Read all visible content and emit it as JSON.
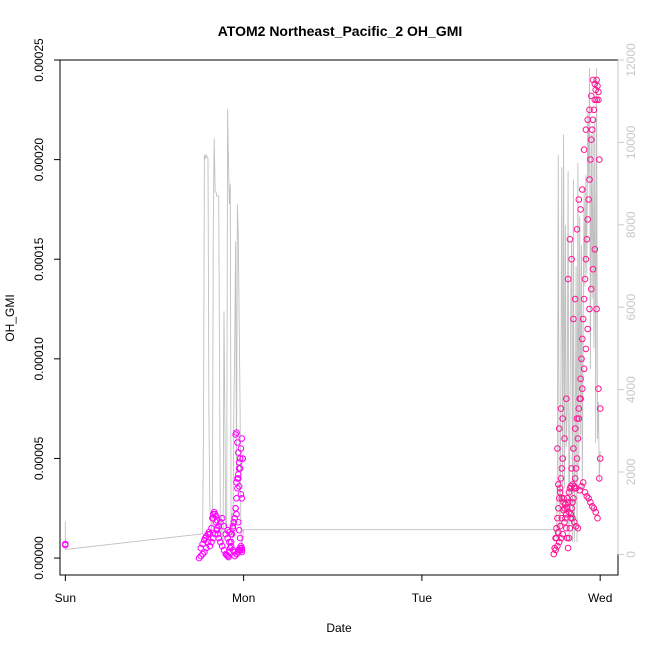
{
  "chart_data": {
    "type": "scatter",
    "title": "ATOM2 Northeast_Pacific_2 OH_GMI",
    "xlabel": "Date",
    "ylabel": "OH_GMI",
    "x_ticks": [
      "Sun",
      "Mon",
      "Tue",
      "Wed"
    ],
    "x_range": [
      -0.03,
      3.1
    ],
    "ylim": [
      -8.5e-06,
      0.00025
    ],
    "y_ticks": [
      "0.00000",
      "0.00005",
      "0.00010",
      "0.00015",
      "0.00020",
      "0.00025"
    ],
    "y2lim": [
      -500,
      12000
    ],
    "y2_ticks": [
      "0",
      "2000",
      "4000",
      "6000",
      "8000",
      "10000",
      "12000"
    ],
    "grid": false,
    "colors": {
      "altitude_line": "#c0c0c0",
      "points_low": "#ff00ff",
      "points_high": "#ff1493",
      "axis": "#000000",
      "axis_right": "#c8c8c8"
    },
    "altitude_series": {
      "x": [
        0.0,
        0.0,
        0.001,
        0.77,
        0.775,
        0.78,
        0.785,
        0.79,
        0.8,
        0.805,
        0.81,
        0.82,
        0.825,
        0.83,
        0.835,
        0.84,
        0.845,
        0.85,
        0.86,
        0.87,
        0.875,
        0.88,
        0.885,
        0.89,
        0.9,
        0.905,
        0.91,
        0.915,
        0.92,
        0.925,
        0.93,
        0.935,
        0.94,
        0.945,
        0.95,
        0.955,
        0.96,
        0.965,
        0.97,
        0.98,
        0.985,
        0.99,
        1.0,
        2.74,
        2.75,
        2.755,
        2.76,
        2.765,
        2.77,
        2.775,
        2.78,
        2.785,
        2.79,
        2.795,
        2.8,
        2.805,
        2.81,
        2.815,
        2.82,
        2.825,
        2.83,
        2.835,
        2.84,
        2.845,
        2.85,
        2.855,
        2.86,
        2.865,
        2.87,
        2.875,
        2.88,
        2.885,
        2.89,
        2.895,
        2.9,
        2.905,
        2.91,
        2.915,
        2.92,
        2.925,
        2.93,
        2.935,
        2.94,
        2.945,
        2.95,
        2.955,
        2.96,
        2.965,
        2.97,
        2.975,
        2.98,
        2.985,
        2.99,
        2.995,
        3.0
      ],
      "y": [
        800,
        550,
        120,
        500,
        3000,
        9700,
        9600,
        9700,
        9600,
        3500,
        1200,
        500,
        900,
        8000,
        10100,
        8800,
        8800,
        8700,
        8700,
        500,
        900,
        200,
        300,
        5900,
        500,
        800,
        10800,
        9500,
        8500,
        9000,
        500,
        1000,
        300,
        3500,
        5000,
        7600,
        2000,
        8500,
        7700,
        3500,
        500,
        200,
        600,
        600,
        500,
        400,
        2000,
        9700,
        300,
        700,
        4800,
        9400,
        1000,
        10200,
        1600,
        8000,
        2600,
        3500,
        9300,
        300,
        2900,
        6300,
        7600,
        300,
        9100,
        300,
        2500,
        7000,
        300,
        9500,
        2100,
        8200,
        2900,
        7500,
        1500,
        5500,
        8900,
        6500,
        9200,
        6800,
        10700,
        9100,
        11800,
        4500,
        10200,
        6200,
        10400,
        5000,
        10600,
        2700,
        11800,
        2800,
        3700,
        1800,
        2500
      ]
    },
    "oh_series": {
      "low_x": [
        0.0,
        0.0,
        0.75,
        0.76,
        0.77,
        0.78,
        0.79,
        0.8,
        0.81,
        0.82,
        0.83,
        0.84,
        0.845,
        0.85,
        0.855,
        0.86,
        0.87,
        0.88,
        0.89,
        0.9,
        0.905,
        0.91,
        0.915,
        0.92,
        0.925,
        0.93,
        0.935,
        0.94,
        0.945,
        0.95,
        0.955,
        0.96,
        0.965,
        0.97,
        0.975,
        0.98,
        0.985,
        0.99,
        0.995,
        0.955,
        0.96,
        0.965,
        0.97,
        0.975,
        0.98,
        0.955,
        0.96,
        0.97,
        0.975,
        0.98,
        0.985,
        0.99,
        0.81,
        0.82,
        0.83,
        0.84,
        0.85,
        0.86,
        0.87,
        0.88,
        0.89,
        0.9,
        0.91,
        0.92,
        0.93,
        0.94,
        0.95,
        0.96,
        0.97,
        0.98,
        0.99,
        0.825,
        0.83,
        0.835,
        0.845,
        0.85,
        0.76,
        0.77,
        0.78,
        0.785,
        0.79,
        0.8,
        0.805,
        0.96,
        0.965,
        0.97,
        0.975,
        0.985,
        0.99,
        0.995,
        0.95,
        0.96,
        0.97,
        0.98,
        0.99,
        0.91,
        0.92,
        0.93,
        0.94
      ],
      "low_y": [
        7e-06,
        6.5e-06,
        0.0,
        1e-06,
        2e-06,
        3e-06,
        5e-06,
        8e-06,
        1.2e-05,
        1.5e-05,
        2e-05,
        2.2e-05,
        1.8e-05,
        1.5e-05,
        1.2e-05,
        1e-05,
        8e-06,
        6e-06,
        4e-06,
        2e-06,
        1.5e-06,
        1e-06,
        5e-07,
        3e-06,
        5e-06,
        8e-06,
        1.2e-05,
        1.5e-05,
        1.8e-05,
        2e-05,
        2.5e-05,
        3e-05,
        3.5e-05,
        4e-05,
        4.5e-05,
        5e-05,
        5.5e-05,
        6e-05,
        5e-05,
        6.2e-05,
        6.3e-05,
        5.8e-05,
        5.3e-05,
        4.8e-05,
        4.5e-05,
        2.5e-05,
        2.2e-05,
        1.8e-05,
        1.4e-05,
        1e-05,
        6e-06,
        4e-06,
        6e-06,
        8e-06,
        1e-05,
        1.2e-05,
        1.4e-05,
        1.6e-05,
        1.8e-05,
        2e-05,
        1.6e-05,
        1.2e-05,
        1e-05,
        8e-06,
        6e-06,
        4e-06,
        3e-06,
        2e-06,
        4e-06,
        5e-06,
        3e-06,
        2e-05,
        2.2e-05,
        2.3e-05,
        2.1e-05,
        1.9e-05,
        5e-06,
        7e-06,
        9e-06,
        1e-05,
        1.1e-05,
        1.2e-05,
        1.3e-05,
        3.8e-05,
        4e-05,
        4.2e-05,
        3.6e-05,
        3.2e-05,
        3e-05,
        5e-05,
        1e-06,
        2e-06,
        3e-06,
        4e-06,
        5e-06,
        1.4e-05,
        1.3e-05,
        1.2e-05,
        1.6e-05
      ],
      "high_x": [
        2.74,
        2.745,
        2.75,
        2.755,
        2.76,
        2.765,
        2.77,
        2.775,
        2.78,
        2.785,
        2.79,
        2.795,
        2.8,
        2.805,
        2.81,
        2.815,
        2.82,
        2.825,
        2.83,
        2.835,
        2.84,
        2.845,
        2.85,
        2.855,
        2.86,
        2.865,
        2.87,
        2.875,
        2.88,
        2.885,
        2.89,
        2.895,
        2.9,
        2.905,
        2.91,
        2.915,
        2.92,
        2.925,
        2.93,
        2.935,
        2.94,
        2.945,
        2.95,
        2.955,
        2.96,
        2.965,
        2.97,
        2.975,
        2.98,
        2.985,
        2.99,
        2.995,
        3.0,
        2.76,
        2.77,
        2.78,
        2.79,
        2.8,
        2.81,
        2.82,
        2.83,
        2.84,
        2.85,
        2.86,
        2.87,
        2.88,
        2.89,
        2.9,
        2.91,
        2.92,
        2.93,
        2.94,
        2.95,
        2.96,
        2.97,
        2.98,
        2.99,
        2.765,
        2.775,
        2.785,
        2.795,
        2.805,
        2.815,
        2.825,
        2.835,
        2.845,
        2.855,
        2.865,
        2.875,
        2.885,
        2.895,
        2.905,
        2.915,
        2.925,
        2.935,
        2.945,
        2.955,
        2.965,
        2.975,
        2.985,
        2.995,
        2.75,
        2.76,
        2.77,
        2.78,
        2.79,
        2.8,
        2.81,
        2.82,
        2.83,
        2.84,
        2.85,
        2.86,
        2.87,
        2.88,
        2.89,
        2.9,
        2.91,
        2.92,
        2.93,
        2.94,
        2.95,
        2.96,
        2.97,
        2.98,
        2.99,
        3.0,
        2.755,
        2.765,
        2.775,
        2.785,
        2.795,
        2.805,
        2.815,
        2.825,
        2.835,
        2.845,
        2.855,
        2.865
      ],
      "high_y": [
        2e-06,
        5e-06,
        1e-05,
        1.5e-05,
        2e-05,
        2.5e-05,
        3e-05,
        3.5e-05,
        4e-05,
        4.5e-05,
        5e-05,
        3e-05,
        2.5e-05,
        2e-05,
        1.5e-05,
        1e-05,
        5e-06,
        1e-05,
        1.5e-05,
        2e-05,
        2.5e-05,
        2.8e-05,
        3e-05,
        3.5e-05,
        4e-05,
        4.5e-05,
        5e-05,
        6e-05,
        7e-05,
        8e-05,
        9e-05,
        0.0001,
        0.00011,
        0.00012,
        0.00013,
        0.00014,
        0.00015,
        0.00016,
        0.00017,
        0.00018,
        0.00019,
        0.0002,
        0.00021,
        0.000215,
        0.00022,
        0.000225,
        0.00023,
        0.000235,
        0.00024,
        0.000237,
        0.00023,
        0.0002,
        5e-05,
        5.5e-05,
        6.5e-05,
        7.5e-05,
        7e-05,
        6e-05,
        8e-05,
        0.00014,
        0.00016,
        0.00015,
        0.00012,
        0.00013,
        0.000165,
        0.00018,
        0.000175,
        0.000185,
        0.000205,
        0.000215,
        0.00022,
        0.000225,
        0.000232,
        0.00024,
        0.000238,
        0.00023,
        0.000234,
        3.7e-05,
        3.3e-05,
        3e-05,
        2.8e-05,
        2.7e-05,
        2.5e-05,
        2.3e-05,
        2.2e-05,
        2e-05,
        1.8e-05,
        1.6e-05,
        1.5e-05,
        3.4e-05,
        3.6e-05,
        3.8e-05,
        3.3e-05,
        3.1e-05,
        3e-05,
        2.8e-05,
        2.6e-05,
        2.5e-05,
        2.3e-05,
        2e-05,
        4e-05,
        4e-06,
        6e-06,
        8e-06,
        1e-05,
        1.2e-05,
        1.8e-05,
        2.2e-05,
        2.8e-05,
        3.5e-05,
        4.5e-05,
        5.5e-05,
        6.5e-05,
        7e-05,
        7.5e-05,
        8e-05,
        8.5e-05,
        9.5e-05,
        0.000105,
        0.000115,
        0.000125,
        0.000135,
        0.000145,
        0.000155,
        0.000125,
        8.5e-05,
        7.5e-05,
        1e-05,
        1.3e-05,
        1.6e-05,
        2e-05,
        2.4e-05,
        2.7e-05,
        3e-05,
        3.3e-05,
        3.6e-05,
        3.7e-05,
        3.6e-05,
        3.5e-05
      ]
    }
  }
}
